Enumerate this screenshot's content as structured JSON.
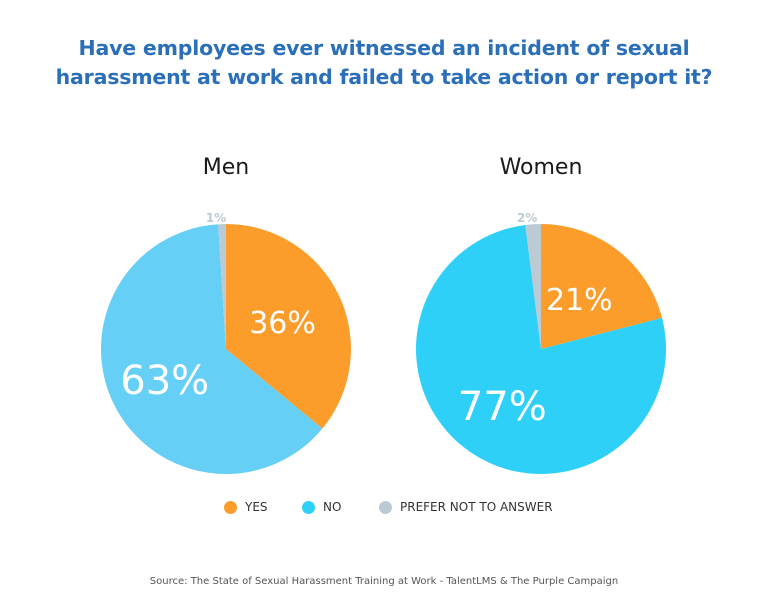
{
  "title": {
    "line1": "Have employees ever witnessed an incident of sexual",
    "line2": "harassment at work and failed to take action or report it?"
  },
  "legend": [
    {
      "label": "YES",
      "color": "#fb9c2b"
    },
    {
      "label": "NO",
      "color": "#2fd0f7"
    },
    {
      "label": "PREFER NOT TO ANSWER",
      "color": "#bccad3"
    }
  ],
  "source": "Source: The State of Sexual Harassment Training at Work - TalentLMS & The Purple Campaign",
  "chart_data": [
    {
      "type": "pie",
      "title": "Men",
      "categories": [
        "YES",
        "NO",
        "PREFER NOT TO ANSWER"
      ],
      "values": [
        36,
        63,
        1
      ],
      "labels": [
        "36%",
        "63%",
        "1%"
      ],
      "colors": [
        "#fb9c2b",
        "#66cff5",
        "#bccad3"
      ],
      "legend_position": "bottom"
    },
    {
      "type": "pie",
      "title": "Women",
      "categories": [
        "YES",
        "NO",
        "PREFER NOT TO ANSWER"
      ],
      "values": [
        21,
        77,
        2
      ],
      "labels": [
        "21%",
        "77%",
        "2%"
      ],
      "colors": [
        "#fb9c2b",
        "#2fd0f7",
        "#bccad3"
      ],
      "legend_position": "bottom"
    }
  ]
}
